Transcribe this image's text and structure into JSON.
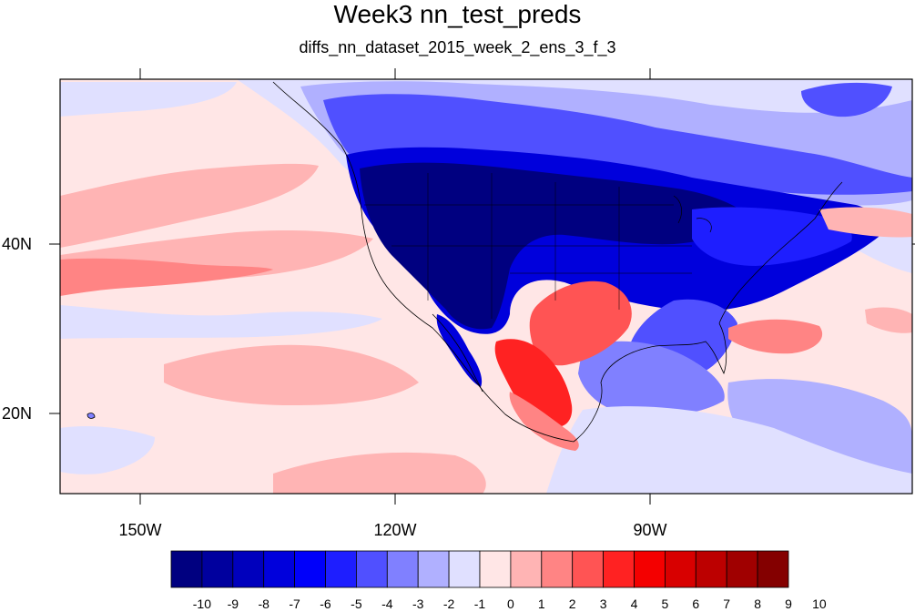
{
  "title": "Week3 nn_test_preds",
  "subtitle": "diffs_nn_dataset_2015_week_2_ens_3_f_3",
  "axes": {
    "lat_labels": [
      "40N",
      "20N"
    ],
    "lon_labels": [
      "150W",
      "120W",
      "90W"
    ]
  },
  "colorbar": {
    "labels": [
      "-10",
      "-9",
      "-8",
      "-7",
      "-6",
      "-5",
      "-4",
      "-3",
      "-2",
      "-1",
      "0",
      "1",
      "2",
      "3",
      "4",
      "5",
      "6",
      "7",
      "8",
      "9",
      "10"
    ],
    "colors": [
      "#000080",
      "#00009e",
      "#0000bd",
      "#0000dc",
      "#0000fa",
      "#1e1eff",
      "#5050ff",
      "#8080ff",
      "#b0b0ff",
      "#e0e0ff",
      "#ffe6e6",
      "#ffb4b4",
      "#ff8484",
      "#ff5454",
      "#ff2222",
      "#f40000",
      "#d80000",
      "#bc0000",
      "#a00000",
      "#840000"
    ]
  },
  "palette": {
    "ocean_bg": "#ffe6e6",
    "deep_blue": "#000080",
    "mid_blue": "#0000dc",
    "light_blue": "#b0b0ff",
    "pale_blue": "#e0e0ff",
    "pale_red": "#ffb4b4",
    "mid_red": "#ff5454",
    "strong_red": "#f40000"
  }
}
